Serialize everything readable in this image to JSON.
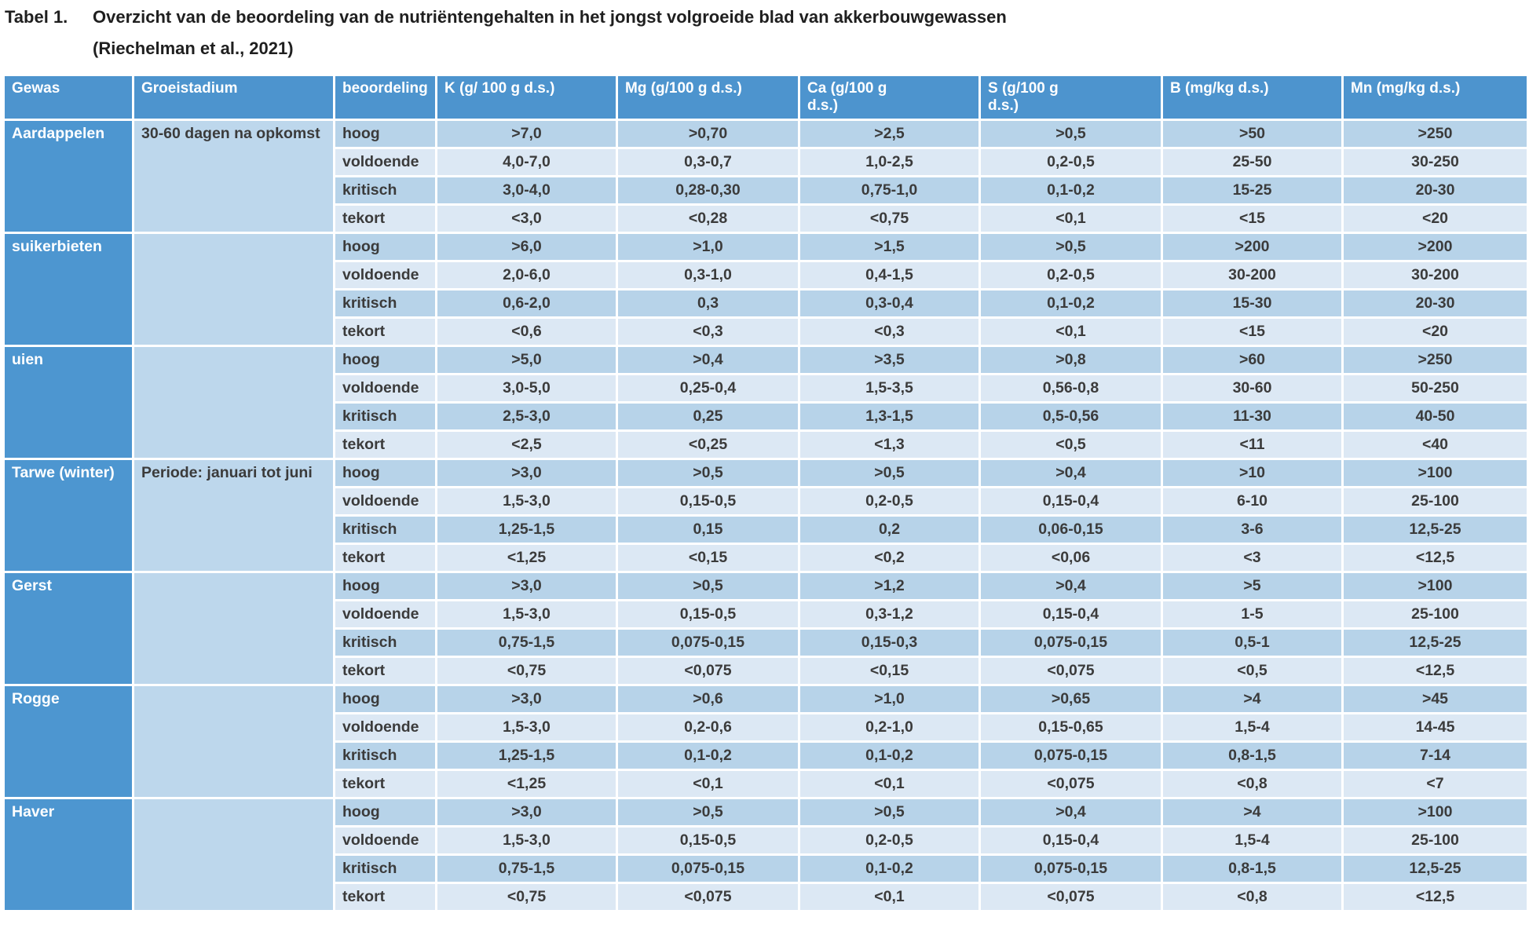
{
  "title": {
    "label": "Tabel 1.",
    "line1": "Overzicht van de beoordeling van de nutriëntengehalten in het jongst volgroeide blad van akkerbouwgewassen",
    "line2": "(Riechelman et al., 2021)"
  },
  "colors": {
    "header_blue": "#4d94ce",
    "crop_column_blue": "#4d96d0",
    "stage_column_blue": "#bdd7ec",
    "band_dark": "#b7d3e9",
    "band_light": "#dce8f4",
    "text_dark": "#3b3b3b",
    "text_white": "#ffffff"
  },
  "chart_data": {
    "type": "table",
    "title": "Tabel 1. Overzicht van de beoordeling van de nutriëntengehalten in het jongst volgroeide blad van akkerbouwgewassen (Riechelman et al., 2021)",
    "headers": [
      "Gewas",
      "Groeistadium",
      "beoordeling",
      "K  (g/ 100 g d.s.)",
      "Mg (g/100 g d.s.)",
      "Ca (g/100 g\nd.s.)",
      "S (g/100 g\nd.s.)",
      "B (mg/kg d.s.)",
      "Mn (mg/kg d.s.)"
    ],
    "groups": [
      {
        "gewas": "Aardappelen",
        "groeistadium": "30-60 dagen na opkomst",
        "rows": [
          {
            "beoordeling": "hoog",
            "values": [
              ">7,0",
              ">0,70",
              ">2,5",
              ">0,5",
              ">50",
              ">250"
            ]
          },
          {
            "beoordeling": "voldoende",
            "values": [
              "4,0-7,0",
              "0,3-0,7",
              "1,0-2,5",
              "0,2-0,5",
              "25-50",
              "30-250"
            ]
          },
          {
            "beoordeling": "kritisch",
            "values": [
              "3,0-4,0",
              "0,28-0,30",
              "0,75-1,0",
              "0,1-0,2",
              "15-25",
              "20-30"
            ]
          },
          {
            "beoordeling": "tekort",
            "values": [
              "<3,0",
              "<0,28",
              "<0,75",
              "<0,1",
              "<15",
              "<20"
            ]
          }
        ]
      },
      {
        "gewas": "suikerbieten",
        "groeistadium": "",
        "rows": [
          {
            "beoordeling": "hoog",
            "values": [
              ">6,0",
              ">1,0",
              ">1,5",
              ">0,5",
              ">200",
              ">200"
            ]
          },
          {
            "beoordeling": "voldoende",
            "values": [
              "2,0-6,0",
              "0,3-1,0",
              "0,4-1,5",
              "0,2-0,5",
              "30-200",
              "30-200"
            ]
          },
          {
            "beoordeling": "kritisch",
            "values": [
              "0,6-2,0",
              "0,3",
              "0,3-0,4",
              "0,1-0,2",
              "15-30",
              "20-30"
            ]
          },
          {
            "beoordeling": "tekort",
            "values": [
              "<0,6",
              "<0,3",
              "<0,3",
              "<0,1",
              "<15",
              "<20"
            ]
          }
        ]
      },
      {
        "gewas": "uien",
        "groeistadium": "",
        "rows": [
          {
            "beoordeling": "hoog",
            "values": [
              ">5,0",
              ">0,4",
              ">3,5",
              ">0,8",
              ">60",
              ">250"
            ]
          },
          {
            "beoordeling": "voldoende",
            "values": [
              "3,0-5,0",
              "0,25-0,4",
              "1,5-3,5",
              "0,56-0,8",
              "30-60",
              "50-250"
            ]
          },
          {
            "beoordeling": "kritisch",
            "values": [
              "2,5-3,0",
              "0,25",
              "1,3-1,5",
              "0,5-0,56",
              "11-30",
              "40-50"
            ]
          },
          {
            "beoordeling": "tekort",
            "values": [
              "<2,5",
              "<0,25",
              "<1,3",
              "<0,5",
              "<11",
              "<40"
            ]
          }
        ]
      },
      {
        "gewas": "Tarwe (winter)",
        "groeistadium": "Periode: januari tot juni",
        "rows": [
          {
            "beoordeling": "hoog",
            "values": [
              ">3,0",
              ">0,5",
              ">0,5",
              ">0,4",
              ">10",
              ">100"
            ]
          },
          {
            "beoordeling": "voldoende",
            "values": [
              "1,5-3,0",
              "0,15-0,5",
              "0,2-0,5",
              "0,15-0,4",
              "6-10",
              "25-100"
            ]
          },
          {
            "beoordeling": "kritisch",
            "values": [
              "1,25-1,5",
              "0,15",
              "0,2",
              "0,06-0,15",
              "3-6",
              "12,5-25"
            ]
          },
          {
            "beoordeling": "tekort",
            "values": [
              "<1,25",
              "<0,15",
              "<0,2",
              "<0,06",
              "<3",
              "<12,5"
            ]
          }
        ]
      },
      {
        "gewas": "Gerst",
        "groeistadium": "",
        "rows": [
          {
            "beoordeling": "hoog",
            "values": [
              ">3,0",
              ">0,5",
              ">1,2",
              ">0,4",
              ">5",
              ">100"
            ]
          },
          {
            "beoordeling": "voldoende",
            "values": [
              "1,5-3,0",
              "0,15-0,5",
              "0,3-1,2",
              "0,15-0,4",
              "1-5",
              "25-100"
            ]
          },
          {
            "beoordeling": "kritisch",
            "values": [
              "0,75-1,5",
              "0,075-0,15",
              "0,15-0,3",
              "0,075-0,15",
              "0,5-1",
              "12,5-25"
            ]
          },
          {
            "beoordeling": "tekort",
            "values": [
              "<0,75",
              "<0,075",
              "<0,15",
              "<0,075",
              "<0,5",
              "<12,5"
            ]
          }
        ]
      },
      {
        "gewas": "Rogge",
        "groeistadium": "",
        "rows": [
          {
            "beoordeling": "hoog",
            "values": [
              ">3,0",
              ">0,6",
              ">1,0",
              ">0,65",
              ">4",
              ">45"
            ]
          },
          {
            "beoordeling": "voldoende",
            "values": [
              "1,5-3,0",
              "0,2-0,6",
              "0,2-1,0",
              "0,15-0,65",
              "1,5-4",
              "14-45"
            ]
          },
          {
            "beoordeling": "kritisch",
            "values": [
              "1,25-1,5",
              "0,1-0,2",
              "0,1-0,2",
              "0,075-0,15",
              "0,8-1,5",
              "7-14"
            ]
          },
          {
            "beoordeling": "tekort",
            "values": [
              "<1,25",
              "<0,1",
              "<0,1",
              "<0,075",
              "<0,8",
              "<7"
            ]
          }
        ]
      },
      {
        "gewas": "Haver",
        "groeistadium": "",
        "rows": [
          {
            "beoordeling": "hoog",
            "values": [
              ">3,0",
              ">0,5",
              ">0,5",
              ">0,4",
              ">4",
              ">100"
            ]
          },
          {
            "beoordeling": "voldoende",
            "values": [
              "1,5-3,0",
              "0,15-0,5",
              "0,2-0,5",
              "0,15-0,4",
              "1,5-4",
              "25-100"
            ]
          },
          {
            "beoordeling": "kritisch",
            "values": [
              "0,75-1,5",
              "0,075-0,15",
              "0,1-0,2",
              "0,075-0,15",
              "0,8-1,5",
              "12,5-25"
            ]
          },
          {
            "beoordeling": "tekort",
            "values": [
              "<0,75",
              "<0,075",
              "<0,1",
              "<0,075",
              "<0,8",
              "<12,5"
            ]
          }
        ]
      }
    ]
  }
}
